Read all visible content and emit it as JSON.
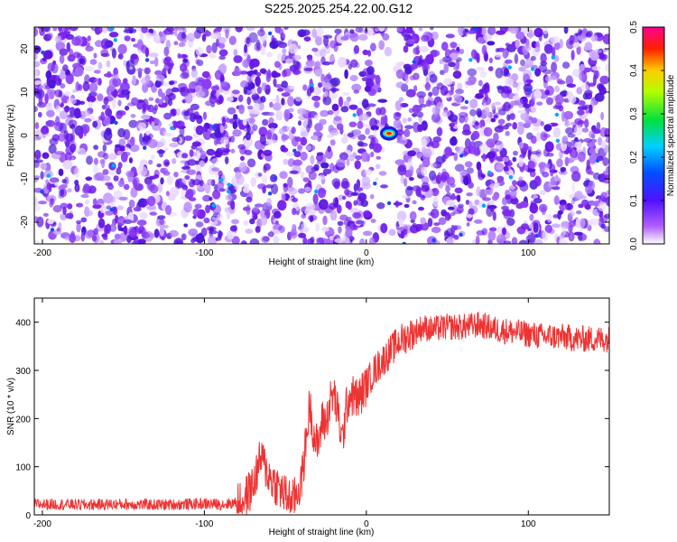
{
  "title": "S225.2025.254.22.00.G12",
  "chart_data": [
    {
      "type": "heatmap",
      "name": "spectrogram",
      "xlabel": "Height of straight line (km)",
      "ylabel": "Frequency (Hz)",
      "xlim": [
        -205,
        150
      ],
      "ylim": [
        -25,
        25
      ],
      "xticks": [
        -200,
        -100,
        0,
        100
      ],
      "yticks": [
        -20,
        -10,
        0,
        10,
        20
      ],
      "colorbar": {
        "label": "Normalized spectral amplitude",
        "range": [
          0.0,
          0.5
        ],
        "ticks": [
          "0.0",
          "0.1",
          "0.2",
          "0.3",
          "0.4",
          "0.5"
        ],
        "colors": [
          "#ffffff",
          "#8000ff",
          "#0000ff",
          "#00ffff",
          "#00ff00",
          "#ffff00",
          "#ff0000",
          "#ff00ff"
        ]
      },
      "peak": {
        "x": 14,
        "y": 0.5,
        "value": 0.5
      },
      "background_level": 0.04,
      "empty_band_x": 15
    },
    {
      "type": "line",
      "name": "snr",
      "xlabel": "Height of straight line (km)",
      "ylabel": "SNR (10 * v/v)",
      "xlim": [
        -205,
        150
      ],
      "ylim": [
        0,
        450
      ],
      "xticks": [
        -200,
        -100,
        0,
        100
      ],
      "yticks": [
        0,
        100,
        200,
        300,
        400
      ],
      "color": "#ee3333",
      "series": [
        {
          "x": [
            -205,
            -190,
            -175,
            -160,
            -145,
            -130,
            -115,
            -100,
            -90,
            -80,
            -75,
            -70,
            -65,
            -60,
            -55,
            -50,
            -45,
            -40,
            -37,
            -35,
            -32,
            -30,
            -27,
            -25,
            -22,
            -20,
            -17,
            -15,
            -12,
            -10,
            -5,
            0,
            5,
            10,
            15,
            20,
            25,
            30,
            35,
            40,
            50,
            60,
            70,
            80,
            90,
            100,
            110,
            120,
            130,
            140,
            150
          ],
          "y": [
            22,
            22,
            21,
            22,
            22,
            21,
            22,
            23,
            22,
            25,
            35,
            60,
            120,
            80,
            60,
            40,
            30,
            70,
            160,
            230,
            160,
            140,
            200,
            190,
            240,
            250,
            200,
            150,
            230,
            250,
            240,
            270,
            300,
            320,
            340,
            360,
            370,
            380,
            390,
            385,
            390,
            390,
            395,
            385,
            380,
            375,
            370,
            370,
            365,
            365,
            365
          ]
        }
      ]
    }
  ]
}
